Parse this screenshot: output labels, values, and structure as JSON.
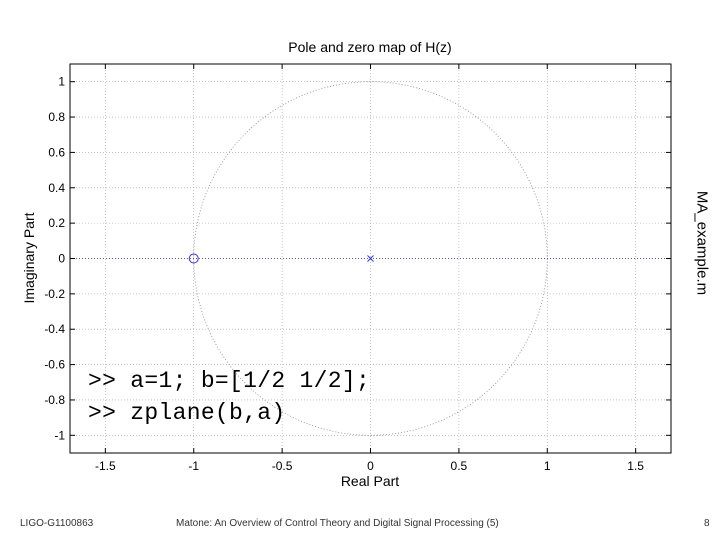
{
  "chart_data": {
    "type": "scatter",
    "title": "Pole and zero map of H(z)",
    "xlabel": "Real Part",
    "ylabel": "Imaginary Part",
    "xlim": [
      -1.7,
      1.7
    ],
    "ylim": [
      -1.1,
      1.1
    ],
    "xticks": [
      -1.5,
      -1,
      -0.5,
      0,
      0.5,
      1,
      1.5
    ],
    "xtick_labels": [
      "-1.5",
      "-1",
      "-0.5",
      "0",
      "0.5",
      "1",
      "1.5"
    ],
    "yticks": [
      1,
      0.8,
      0.6,
      0.4,
      0.2,
      0,
      -0.2,
      -0.4,
      -0.6,
      -0.8,
      -1
    ],
    "ytick_labels": [
      "1",
      "0.8",
      "0.6",
      "0.4",
      "0.2",
      "0",
      "-0.2",
      "-0.4",
      "-0.6",
      "-0.8",
      "-1"
    ],
    "grid": true,
    "unit_circle": true,
    "zeros": [
      {
        "x": -1,
        "y": 0
      }
    ],
    "poles": [
      {
        "x": 0,
        "y": 0
      }
    ],
    "marker_color": "#3333cc"
  },
  "code": {
    "line1": ">> a=1; b=[1/2 1/2];",
    "line2": ">> zplane(b,a)"
  },
  "side_label": "MA_example.m",
  "footer": {
    "left": "LIGO-G1100863",
    "center": "Matone: An Overview of Control Theory and Digital Signal Processing (5)",
    "right": "8"
  }
}
